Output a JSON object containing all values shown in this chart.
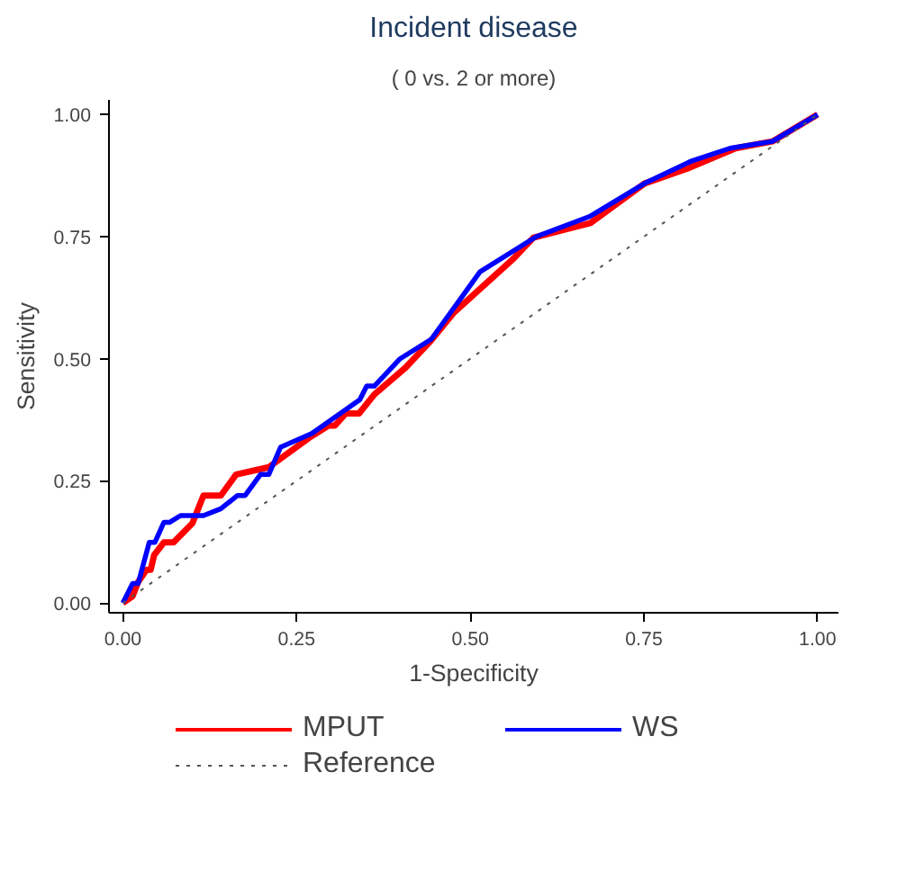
{
  "chart_data": {
    "type": "line",
    "title": "Incident disease",
    "subtitle": "( 0 vs. 2 or more)",
    "xlabel": "1-Specificity",
    "ylabel": "Sensitivity",
    "xlim": [
      -0.02,
      1.03
    ],
    "ylim": [
      -0.02,
      1.03
    ],
    "xticks": [
      {
        "value": 0,
        "label": "0.00"
      },
      {
        "value": 0.25,
        "label": "0.25"
      },
      {
        "value": 0.5,
        "label": "0.50"
      },
      {
        "value": 0.75,
        "label": "0.75"
      },
      {
        "value": 1,
        "label": "1.00"
      }
    ],
    "yticks": [
      {
        "value": 0,
        "label": "0.00"
      },
      {
        "value": 0.25,
        "label": "0.25"
      },
      {
        "value": 0.5,
        "label": "0.50"
      },
      {
        "value": 0.75,
        "label": "0.75"
      },
      {
        "value": 1,
        "label": "1.00"
      }
    ],
    "grid": false,
    "legend": "bottom",
    "marker": "none",
    "series": [
      {
        "name": "MPUT",
        "color": "#ff0000",
        "line_style": "solid",
        "x": [
          0,
          0.014,
          0.022,
          0.034,
          0.04,
          0.045,
          0.059,
          0.073,
          0.1,
          0.116,
          0.141,
          0.163,
          0.21,
          0.268,
          0.296,
          0.305,
          0.321,
          0.34,
          0.362,
          0.407,
          0.444,
          0.476,
          0.563,
          0.591,
          0.673,
          0.751,
          0.812,
          0.882,
          0.935,
          1
        ],
        "values": [
          0,
          0.014,
          0.043,
          0.068,
          0.068,
          0.098,
          0.124,
          0.124,
          0.163,
          0.22,
          0.22,
          0.263,
          0.278,
          0.338,
          0.363,
          0.363,
          0.388,
          0.388,
          0.427,
          0.482,
          0.538,
          0.594,
          0.706,
          0.748,
          0.778,
          0.859,
          0.889,
          0.931,
          0.945,
          1
        ]
      },
      {
        "name": "WS",
        "color": "#0000ff",
        "line_style": "solid",
        "x": [
          0,
          0.014,
          0.022,
          0.038,
          0.046,
          0.059,
          0.067,
          0.083,
          0.116,
          0.141,
          0.165,
          0.176,
          0.198,
          0.21,
          0.227,
          0.272,
          0.341,
          0.351,
          0.362,
          0.399,
          0.444,
          0.514,
          0.595,
          0.673,
          0.751,
          0.817,
          0.874,
          0.935,
          1
        ],
        "values": [
          0,
          0.04,
          0.04,
          0.124,
          0.124,
          0.165,
          0.165,
          0.179,
          0.179,
          0.193,
          0.22,
          0.22,
          0.263,
          0.263,
          0.319,
          0.347,
          0.416,
          0.444,
          0.444,
          0.5,
          0.54,
          0.678,
          0.75,
          0.792,
          0.859,
          0.904,
          0.931,
          0.945,
          1
        ]
      },
      {
        "name": "Reference",
        "color": "#555555",
        "line_style": "dotted",
        "x": [
          0,
          1
        ],
        "values": [
          0,
          1
        ]
      }
    ]
  }
}
